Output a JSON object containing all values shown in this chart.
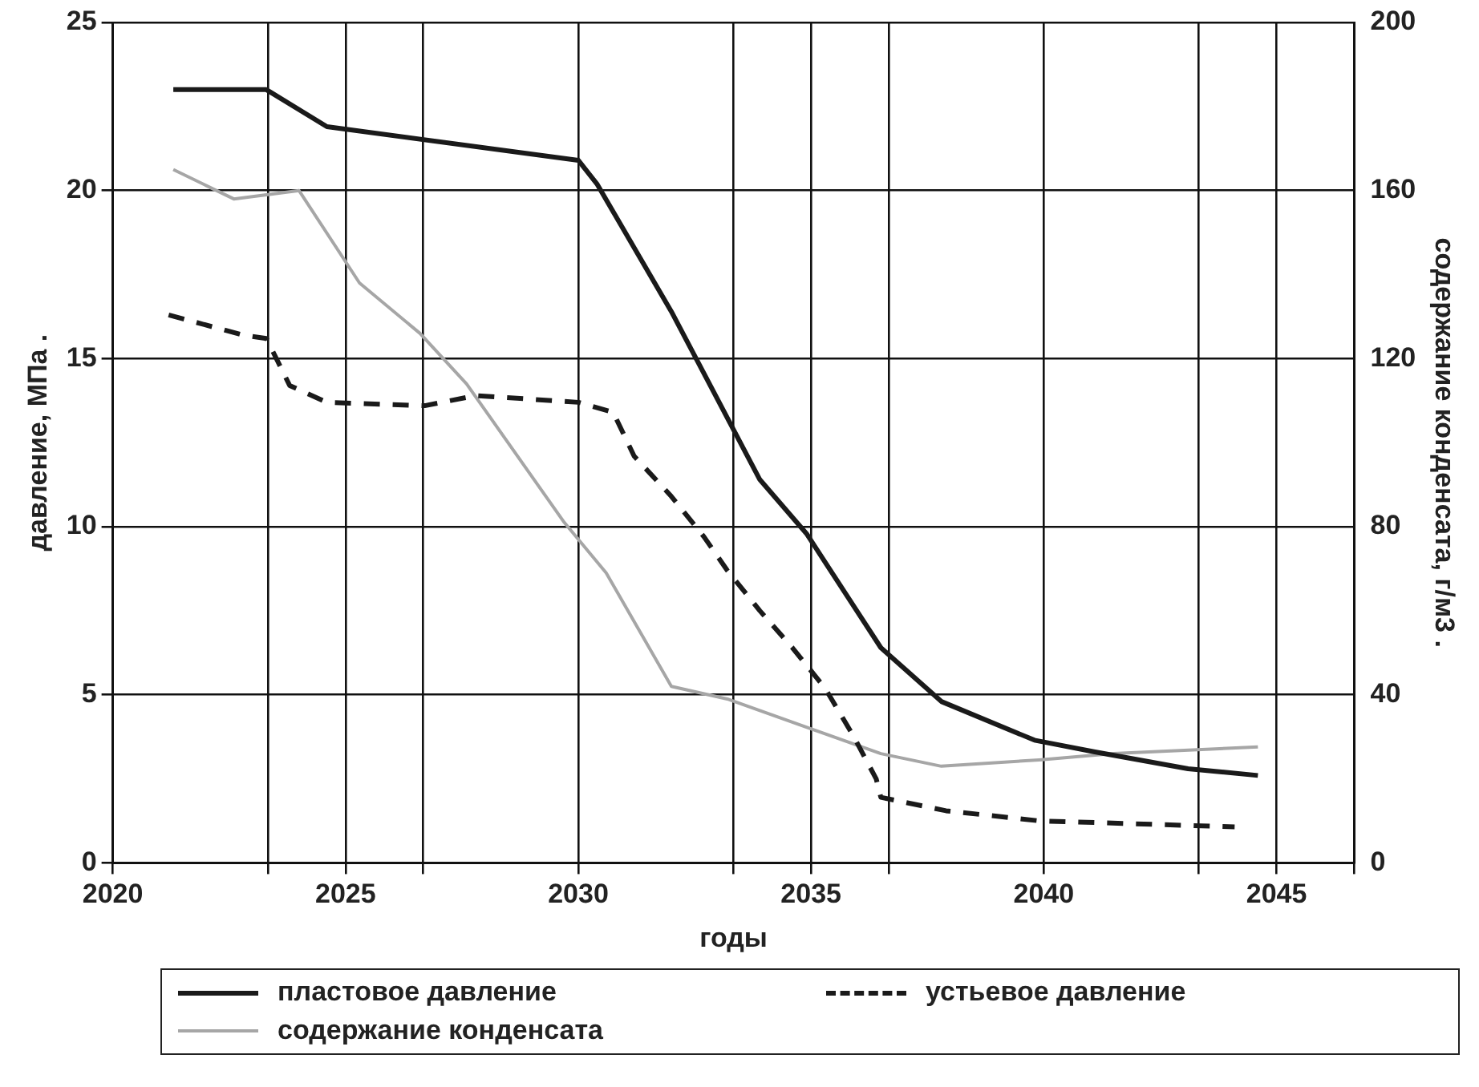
{
  "chart_data": {
    "type": "line",
    "xlabel": "годы",
    "ylabel": "давление, МПа .",
    "y2label": "содержание конденсата, г/м3 .",
    "xlim": [
      2020,
      2046.67
    ],
    "xticks": [
      2020,
      {
        "value": 2023.33,
        "label": null
      },
      2025,
      {
        "value": 2026.67,
        "label": null
      },
      2030,
      {
        "value": 2033.33,
        "label": null
      },
      2035,
      {
        "value": 2036.67,
        "label": null
      },
      2040,
      {
        "value": 2043.33,
        "label": null
      },
      2045,
      {
        "value": 2046.67,
        "label": null
      }
    ],
    "ylim": [
      0,
      25
    ],
    "yticks": [
      0,
      5,
      10,
      15,
      20,
      25
    ],
    "y2lim": [
      0,
      200
    ],
    "y2ticks": [
      0,
      40,
      80,
      120,
      160,
      200
    ],
    "grid": true,
    "legend": "bottom",
    "marker": "none",
    "series": [
      {
        "name": "пластовое давление",
        "color": "#1a1a1a",
        "line_style": "solid",
        "x": [
          2021.3,
          2023.3,
          2024.6,
          2030.0,
          2030.4,
          2032.0,
          2033.9,
          2034.9,
          2036.5,
          2037.8,
          2039.8,
          2041.1,
          2043.1,
          2044.6
        ],
        "values": [
          23.0,
          23.0,
          21.9,
          20.9,
          20.2,
          16.4,
          11.4,
          9.8,
          6.4,
          4.8,
          3.65,
          3.3,
          2.8,
          2.6
        ]
      },
      {
        "name": "устьевое давление",
        "color": "#1a1a1a",
        "line_style": "dashed",
        "x": [
          2021.2,
          2022.8,
          2023.3,
          2023.8,
          2024.6,
          2026.7,
          2027.8,
          2030.0,
          2030.75,
          2031.2,
          2032.0,
          2032.7,
          2033.2,
          2033.9,
          2034.6,
          2035.3,
          2035.9,
          2036.4,
          2036.5,
          2037.9,
          2039.9,
          2044.1
        ],
        "values": [
          16.3,
          15.7,
          15.6,
          14.2,
          13.7,
          13.6,
          13.9,
          13.7,
          13.4,
          12.1,
          10.9,
          9.7,
          8.7,
          7.5,
          6.4,
          5.2,
          3.8,
          2.5,
          1.95,
          1.55,
          1.25,
          1.07
        ]
      },
      {
        "name": "содержание конденсата",
        "color": "#a6a6a6",
        "line_style": "solid",
        "axis": "y2",
        "x": [
          2021.3,
          2022.6,
          2024.0,
          2025.3,
          2026.6,
          2027.6,
          2029.7,
          2030.6,
          2032.0,
          2033.2,
          2036.5,
          2037.8,
          2039.9,
          2041.5,
          2044.6
        ],
        "values": [
          165,
          158,
          160,
          138,
          126,
          114,
          81,
          69,
          42,
          39,
          26,
          23,
          24.5,
          26,
          27.6
        ]
      }
    ]
  }
}
